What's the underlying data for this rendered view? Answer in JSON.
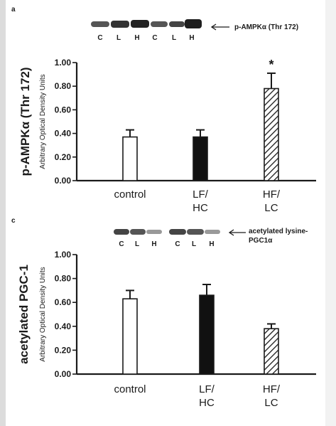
{
  "panel_a": {
    "letter": "a",
    "blot_annotation": "p-AMPKα (Thr 172)",
    "blot_lanes": [
      "C",
      "L",
      "H",
      "C",
      "L",
      "H"
    ],
    "chart_data": {
      "type": "bar",
      "categories": [
        [
          "control"
        ],
        [
          "LF/",
          "HC"
        ],
        [
          "HF/",
          "LC"
        ]
      ],
      "values": [
        0.37,
        0.37,
        0.78
      ],
      "errors": [
        0.06,
        0.06,
        0.13
      ],
      "fills": [
        "white",
        "black",
        "hatched"
      ],
      "ylabel": "p-AMPKα (Thr 172)",
      "ylabel2": "Arbitrary Optical Density Units",
      "yticks": [
        "0.00",
        "0.20",
        "0.40",
        "0.60",
        "0.80",
        "1.00"
      ],
      "ylim": [
        0,
        1.0
      ],
      "annotations": [
        {
          "category": 2,
          "text": "*"
        }
      ]
    }
  },
  "panel_c": {
    "letter": "c",
    "blot_annotation_line1": "acetylated lysine-",
    "blot_annotation_line2": "PGC1α",
    "blot_lanes": [
      "C",
      "L",
      "H",
      "C",
      "L",
      "H"
    ],
    "chart_data": {
      "type": "bar",
      "categories": [
        [
          "control"
        ],
        [
          "LF/",
          "HC"
        ],
        [
          "HF/",
          "LC"
        ]
      ],
      "values": [
        0.63,
        0.66,
        0.38
      ],
      "errors": [
        0.07,
        0.09,
        0.04
      ],
      "fills": [
        "white",
        "black",
        "hatched"
      ],
      "ylabel": "acetylated PGC-1",
      "ylabel2": "Arbitrary Optical Density Units",
      "yticks": [
        "0.00",
        "0.20",
        "0.40",
        "0.60",
        "0.80",
        "1.00"
      ],
      "ylim": [
        0,
        1.0
      ],
      "annotations": []
    }
  },
  "colors": {
    "ink": "#1a1a1a",
    "band_dark": "#2a2a2a",
    "band_light": "#6a6a6a"
  }
}
